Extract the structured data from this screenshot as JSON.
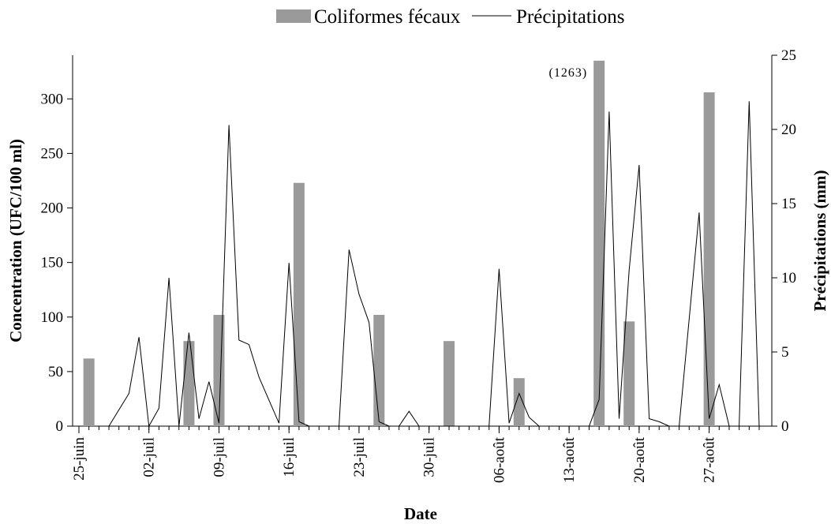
{
  "chart_data": {
    "type": "bar+line",
    "xlabel": "Date",
    "ylabel_left": "Concentration (UFC/100 ml)",
    "ylabel_right": "Précipitations (mm)",
    "legend": {
      "position": "top-center",
      "bar_label": "Coliformes fécaux",
      "line_label": "Précipitations"
    },
    "ylim_left": [
      0,
      340
    ],
    "yticks_left": [
      0,
      50,
      100,
      150,
      200,
      250,
      300
    ],
    "ylim_right": [
      0,
      25
    ],
    "yticks_right": [
      0,
      5,
      10,
      15,
      20,
      25
    ],
    "x_tick_labels": [
      {
        "day": 0,
        "label": "25-juin"
      },
      {
        "day": 7,
        "label": "02-juil"
      },
      {
        "day": 14,
        "label": "09-juil"
      },
      {
        "day": 21,
        "label": "16-juil"
      },
      {
        "day": 28,
        "label": "23-juil"
      },
      {
        "day": 35,
        "label": "30-juil"
      },
      {
        "day": 42,
        "label": "06-août"
      },
      {
        "day": 49,
        "label": "13-août"
      },
      {
        "day": 56,
        "label": "20-août"
      },
      {
        "day": 63,
        "label": "27-août"
      }
    ],
    "x_range_days": [
      0,
      68
    ],
    "series": [
      {
        "name": "Coliformes fécaux",
        "type": "bar",
        "axis": "left",
        "color": "#9a9a9a",
        "points": [
          {
            "day": 1,
            "value": 62
          },
          {
            "day": 11,
            "value": 78
          },
          {
            "day": 14,
            "value": 102
          },
          {
            "day": 22,
            "value": 223
          },
          {
            "day": 30,
            "value": 102
          },
          {
            "day": 37,
            "value": 78
          },
          {
            "day": 44,
            "value": 44
          },
          {
            "day": 52,
            "value": 335,
            "label": "(1263)"
          },
          {
            "day": 55,
            "value": 96
          },
          {
            "day": 63,
            "value": 306
          }
        ]
      },
      {
        "name": "Précipitations",
        "type": "line",
        "axis": "right",
        "color": "#000000",
        "points": [
          [
            3,
            0
          ],
          [
            5,
            2.2
          ],
          [
            6,
            6
          ],
          [
            7,
            0
          ],
          [
            8,
            1.2
          ],
          [
            9,
            10
          ],
          [
            10,
            0
          ],
          [
            11,
            6.3
          ],
          [
            12,
            0.5
          ],
          [
            13,
            3
          ],
          [
            14,
            0.2
          ],
          [
            15,
            20.3
          ],
          [
            16,
            5.8
          ],
          [
            17,
            5.5
          ],
          [
            18,
            3.3
          ],
          [
            20,
            0.2
          ],
          [
            21,
            11
          ],
          [
            22,
            0.3
          ],
          [
            23,
            0
          ],
          [
            26,
            0
          ],
          [
            27,
            11.9
          ],
          [
            28,
            8.9
          ],
          [
            29,
            7
          ],
          [
            30,
            0.3
          ],
          [
            31,
            0
          ],
          [
            32,
            0
          ],
          [
            33,
            1
          ],
          [
            34,
            0
          ],
          [
            41,
            0
          ],
          [
            42,
            10.6
          ],
          [
            43,
            0.2
          ],
          [
            44,
            2.2
          ],
          [
            45,
            0.6
          ],
          [
            46,
            0
          ],
          [
            51,
            0
          ],
          [
            52,
            1.8
          ],
          [
            53,
            21.2
          ],
          [
            54,
            0.5
          ],
          [
            55,
            10.5
          ],
          [
            56,
            17.6
          ],
          [
            57,
            0.5
          ],
          [
            58,
            0.3
          ],
          [
            59,
            0
          ],
          [
            60,
            0
          ],
          [
            62,
            14.4
          ],
          [
            63,
            0.5
          ],
          [
            64,
            2.8
          ],
          [
            65,
            0
          ],
          [
            66,
            0
          ],
          [
            67,
            21.9
          ],
          [
            68,
            0
          ]
        ]
      }
    ]
  }
}
